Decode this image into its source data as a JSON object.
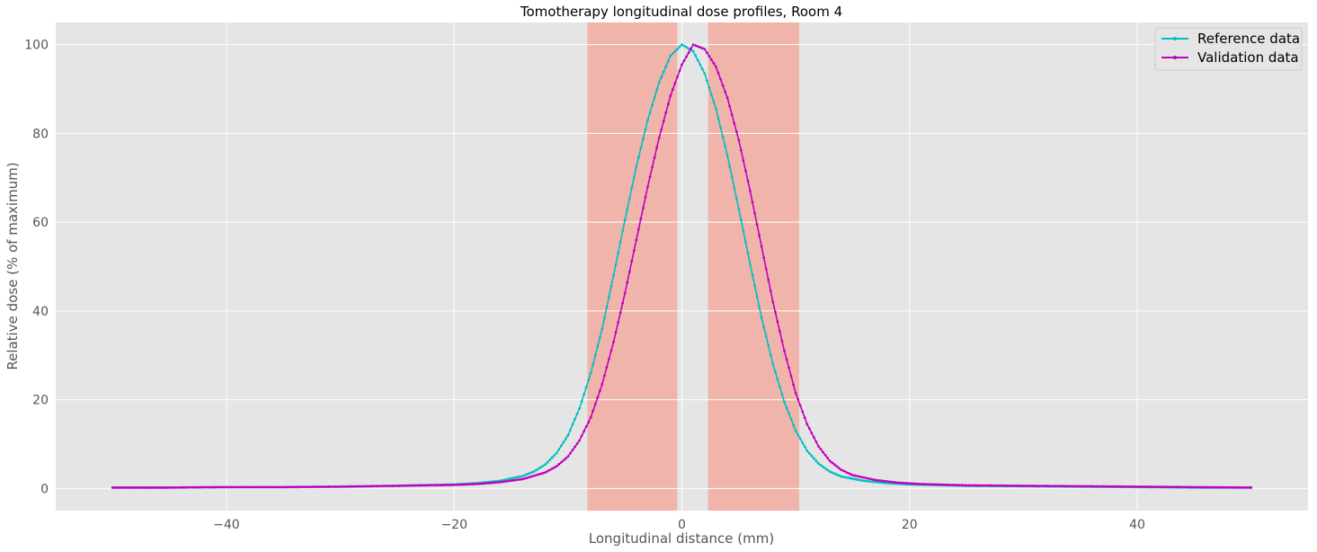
{
  "chart_data": {
    "type": "line",
    "title": "Tomotherapy longitudinal dose profiles, Room 4",
    "xlabel": "Longitudinal distance (mm)",
    "ylabel": "Relative dose (% of maximum)",
    "xlim": [
      -55,
      55
    ],
    "ylim": [
      -5,
      105
    ],
    "xticks": [
      -40,
      -20,
      0,
      20,
      40
    ],
    "yticks": [
      0,
      20,
      40,
      60,
      80,
      100
    ],
    "xtick_labels": [
      "−40",
      "−20",
      "0",
      "20",
      "40"
    ],
    "ytick_labels": [
      "0",
      "20",
      "40",
      "60",
      "80",
      "100"
    ],
    "grid": true,
    "legend_position": "top-right",
    "background_color": "#e5e5e5",
    "grid_color": "#ffffff",
    "shaded_regions": [
      {
        "x0": -8.3,
        "x1": -0.4,
        "color": "#f4a79c"
      },
      {
        "x0": 2.3,
        "x1": 10.3,
        "color": "#f4a79c"
      }
    ],
    "series": [
      {
        "name": "Reference data",
        "color": "#17becf",
        "line_color": "#00bfbf",
        "x": [
          -50,
          -45,
          -40,
          -35,
          -30,
          -25,
          -20,
          -18,
          -16,
          -14,
          -13,
          -12,
          -11,
          -10,
          -9,
          -8,
          -7,
          -6,
          -5,
          -4,
          -3,
          -2,
          -1,
          0,
          1,
          2,
          3,
          4,
          5,
          6,
          7,
          8,
          9,
          10,
          11,
          12,
          13,
          14,
          16,
          18,
          20,
          25,
          30,
          35,
          40,
          45,
          50
        ],
        "y": [
          0.2,
          0.2,
          0.3,
          0.3,
          0.4,
          0.6,
          0.9,
          1.2,
          1.7,
          2.8,
          3.8,
          5.4,
          8.0,
          12.0,
          18.0,
          26.0,
          36.0,
          48.0,
          60.5,
          72.5,
          83.0,
          91.5,
          97.5,
          100.0,
          98.5,
          93.5,
          85.5,
          75.0,
          63.0,
          50.5,
          38.5,
          28.0,
          19.5,
          13.0,
          8.5,
          5.6,
          3.8,
          2.7,
          1.7,
          1.2,
          0.9,
          0.6,
          0.5,
          0.4,
          0.3,
          0.2,
          0.2
        ]
      },
      {
        "name": "Validation data",
        "color": "#bf00bf",
        "line_color": "#bf00bf",
        "x": [
          -50,
          -45,
          -40,
          -35,
          -30,
          -25,
          -20,
          -18,
          -16,
          -14,
          -12,
          -11,
          -10,
          -9,
          -8,
          -7,
          -6,
          -5,
          -4,
          -3,
          -2,
          -1,
          0,
          1,
          2,
          3,
          4,
          5,
          6,
          7,
          8,
          9,
          10,
          11,
          12,
          13,
          14,
          15,
          17,
          19,
          21,
          25,
          30,
          35,
          40,
          45,
          50
        ],
        "y": [
          0.2,
          0.2,
          0.3,
          0.3,
          0.4,
          0.6,
          0.8,
          1.0,
          1.4,
          2.1,
          3.6,
          5.0,
          7.2,
          10.8,
          16.0,
          23.5,
          33.0,
          44.0,
          56.0,
          68.0,
          79.0,
          88.5,
          95.5,
          100.0,
          99.0,
          95.0,
          88.0,
          78.5,
          67.0,
          54.5,
          42.0,
          31.0,
          21.5,
          14.5,
          9.5,
          6.2,
          4.2,
          3.0,
          1.9,
          1.3,
          1.0,
          0.7,
          0.6,
          0.5,
          0.4,
          0.3,
          0.2
        ]
      }
    ]
  }
}
